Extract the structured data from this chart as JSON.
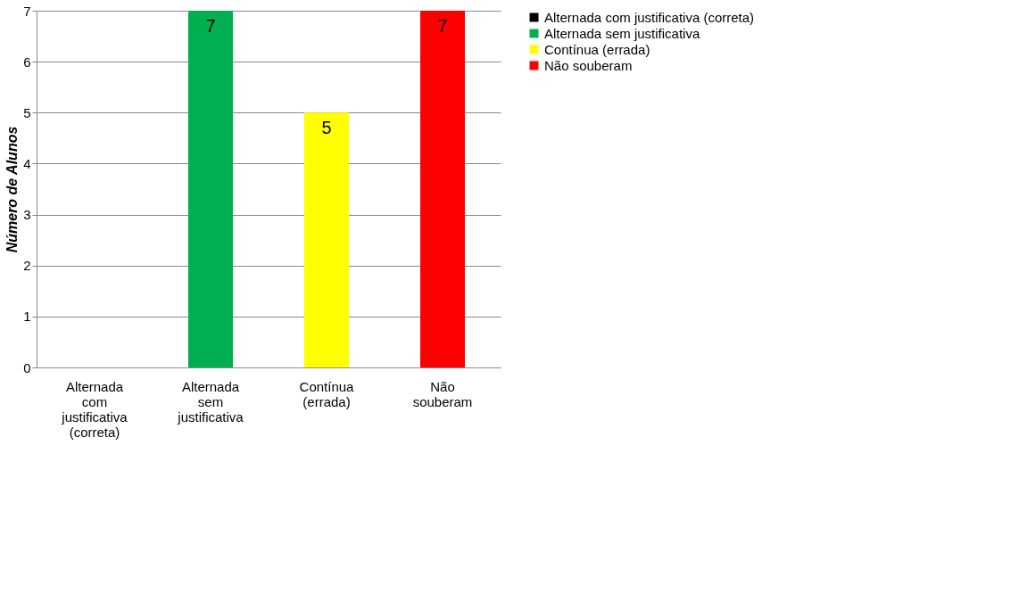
{
  "chart_data": {
    "type": "bar",
    "ylabel": "Número de Alunos",
    "categories": [
      "Alternada com justificativa (correta)",
      "Alternada sem justificativa",
      "Contínua (errada)",
      "Não souberam"
    ],
    "series": [
      {
        "name": "Alternada com justificativa (correta)",
        "color": "#000000",
        "values": [
          0,
          null,
          null,
          null
        ]
      },
      {
        "name": "Alternada sem justificativa",
        "color": "#00b050",
        "values": [
          null,
          7,
          null,
          null
        ],
        "value_labels": [
          null,
          "7",
          null,
          null
        ]
      },
      {
        "name": "Contínua (errada)",
        "color": "#ffff00",
        "values": [
          null,
          null,
          5,
          null
        ],
        "value_labels": [
          null,
          null,
          "5",
          null
        ]
      },
      {
        "name": "Não souberam",
        "color": "#ff0000",
        "values": [
          null,
          null,
          null,
          7
        ],
        "value_labels": [
          null,
          null,
          null,
          "7"
        ]
      }
    ],
    "ylim": [
      0,
      7
    ],
    "yticks": [
      0,
      1,
      2,
      3,
      4,
      5,
      6,
      7
    ],
    "grid": "y",
    "legend": "right"
  }
}
